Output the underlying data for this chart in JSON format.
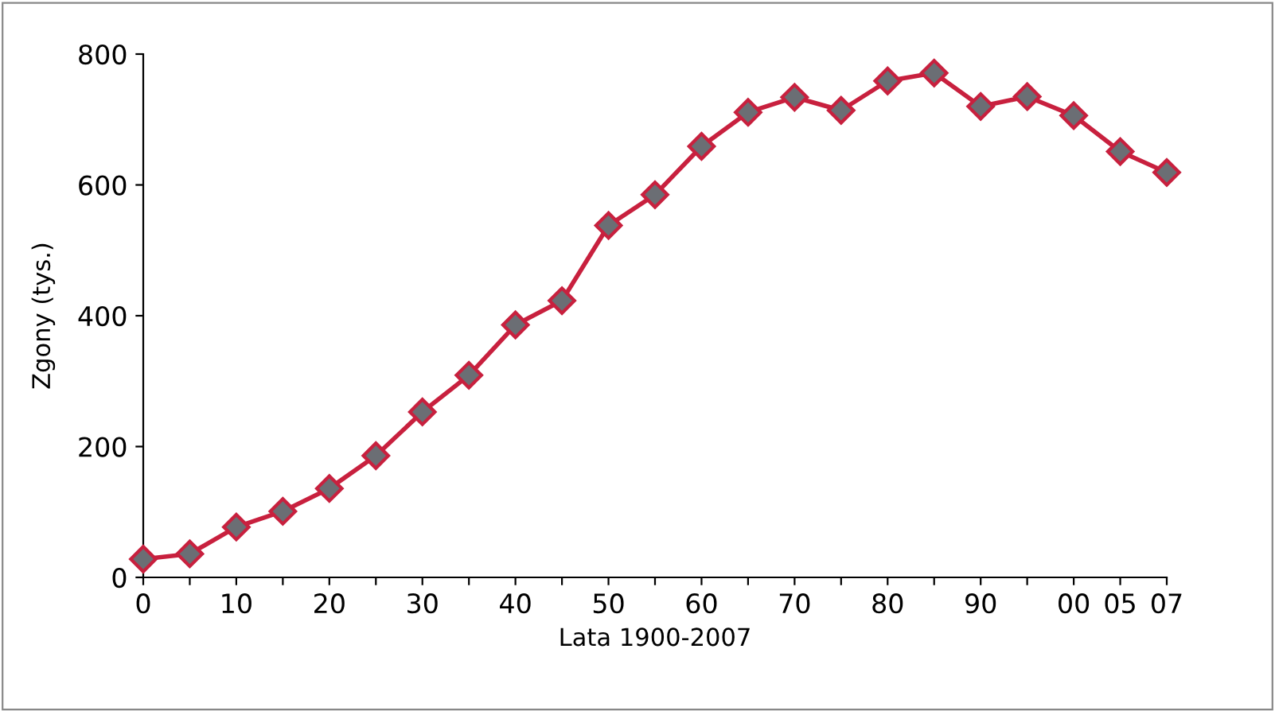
{
  "chart_data": {
    "type": "line",
    "xlabel": "Lata 1900-2007",
    "ylabel": "Zgony (tys.)",
    "categories": [
      "0",
      null,
      "10",
      null,
      "20",
      null,
      "30",
      null,
      "40",
      null,
      "50",
      null,
      "60",
      null,
      "70",
      null,
      "80",
      null,
      "90",
      null,
      "00",
      "05",
      "07"
    ],
    "series": [
      {
        "color": "#c8203e",
        "values": [
          28,
          36,
          77,
          101,
          136,
          186,
          253,
          309,
          386,
          423,
          538,
          585,
          659,
          711,
          734,
          714,
          759,
          771,
          720,
          735,
          706,
          651,
          619
        ]
      }
    ],
    "ylim": [
      0,
      800
    ],
    "yticks": [
      0,
      200,
      400,
      600,
      800
    ],
    "grid": false,
    "marker": "diamond",
    "line_style": "solid"
  }
}
